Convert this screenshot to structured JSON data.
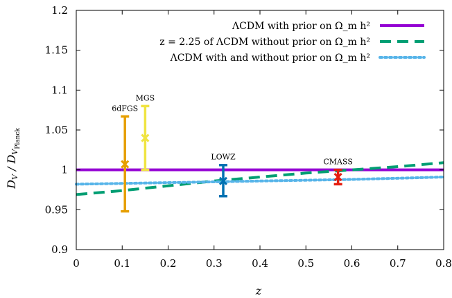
{
  "chart_data": {
    "type": "line",
    "xlabel": "z",
    "ylabel": "D_V / D_V,Planck",
    "xlim": [
      0,
      0.8
    ],
    "ylim": [
      0.9,
      1.2
    ],
    "xticks": [
      "0",
      "0.1",
      "0.2",
      "0.3",
      "0.4",
      "0.5",
      "0.6",
      "0.7",
      "0.8"
    ],
    "yticks": [
      "0.9",
      "0.95",
      "1",
      "1.05",
      "1.1",
      "1.15",
      "1.2"
    ],
    "legend_position": "top-right",
    "grid": false,
    "series": [
      {
        "name": "ΛCDM with prior on Ω_m h²",
        "style": "solid",
        "color": "#9400d3",
        "x": [
          0,
          0.8
        ],
        "y": [
          1.0,
          1.0
        ]
      },
      {
        "name": "z = 2.25 of ΛCDM without prior on Ω_m h²",
        "style": "dashed",
        "color": "#009e73",
        "x": [
          0,
          0.1,
          0.2,
          0.3,
          0.4,
          0.5,
          0.6,
          0.7,
          0.8
        ],
        "y": [
          0.969,
          0.974,
          0.98,
          0.986,
          0.991,
          0.996,
          1.0,
          1.004,
          1.009
        ]
      },
      {
        "name": "ΛCDM with and without prior on Ω_m h²",
        "style": "dotted",
        "color": "#56b4e9",
        "x": [
          0,
          0.2,
          0.4,
          0.6,
          0.8
        ],
        "y": [
          0.982,
          0.984,
          0.986,
          0.988,
          0.991
        ]
      }
    ],
    "points": [
      {
        "name": "6dFGS",
        "x": 0.106,
        "y": 1.007,
        "lo": 0.948,
        "hi": 1.067,
        "color": "#e69f00"
      },
      {
        "name": "MGS",
        "x": 0.15,
        "y": 1.04,
        "lo": 1.0,
        "hi": 1.08,
        "color": "#f0e442"
      },
      {
        "name": "LOWZ",
        "x": 0.32,
        "y": 0.986,
        "lo": 0.967,
        "hi": 1.006,
        "color": "#0072b2"
      },
      {
        "name": "CMASS",
        "x": 0.57,
        "y": 0.991,
        "lo": 0.982,
        "hi": 1.0,
        "color": "#e51e10"
      }
    ]
  }
}
